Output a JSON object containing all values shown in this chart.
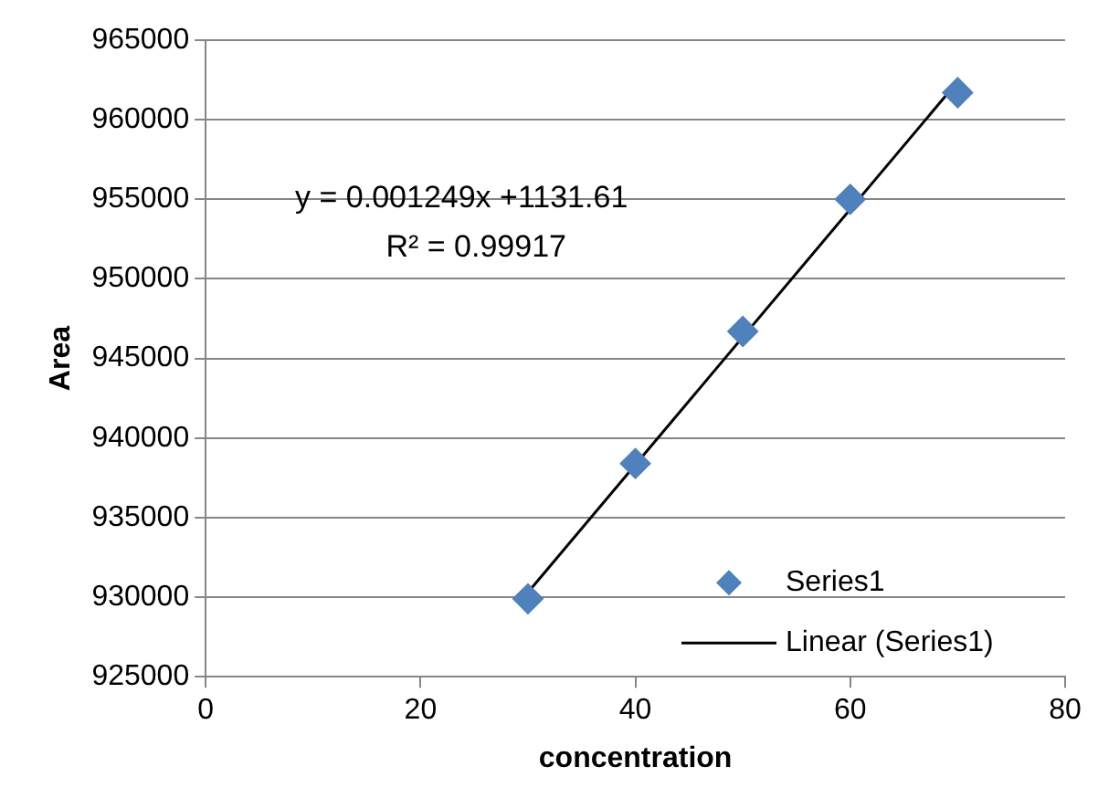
{
  "chart_data": {
    "type": "scatter",
    "xlabel": "concentration",
    "ylabel": "Area",
    "series": [
      {
        "name": "Series1",
        "color": "#4f81bd",
        "marker": "diamond",
        "x": [
          30,
          40,
          50,
          60,
          70
        ],
        "values": [
          929900,
          938400,
          946700,
          955000,
          961700
        ]
      },
      {
        "name": "Linear (Series1)",
        "type": "line",
        "color": "#000000",
        "marker": "none",
        "line_style": "solid",
        "x": [
          30,
          70
        ],
        "values": [
          930300,
          962400
        ]
      }
    ],
    "xlim": [
      0,
      80
    ],
    "xticks": [
      0,
      20,
      40,
      60,
      80
    ],
    "ylim": [
      925000,
      965000
    ],
    "yticks": [
      925000,
      930000,
      935000,
      940000,
      945000,
      950000,
      955000,
      960000,
      965000
    ],
    "grid": "y",
    "legend": "bottom right",
    "annotations": [
      "y = 0.001249x +1131.61",
      "R² = 0.99917"
    ]
  }
}
